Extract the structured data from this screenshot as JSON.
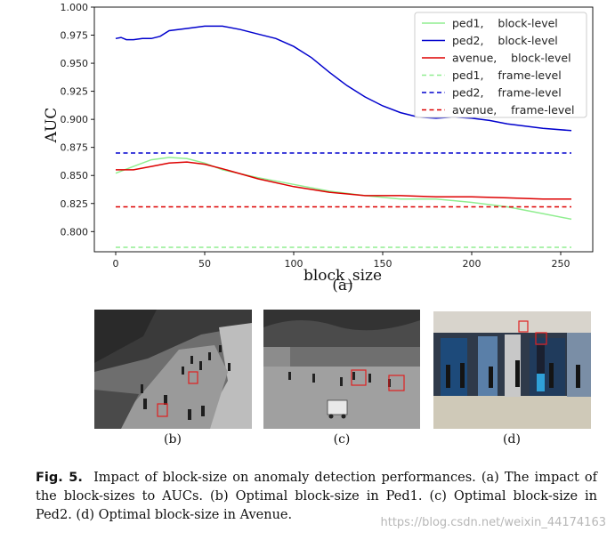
{
  "chart_data": {
    "type": "line",
    "title": "",
    "xlabel": "block_size",
    "ylabel": "AUC",
    "sublabel": "(a)",
    "xlim": [
      -12,
      268
    ],
    "ylim": [
      0.782,
      1.0
    ],
    "xticks": [
      0,
      50,
      100,
      150,
      200,
      250
    ],
    "yticks": [
      0.8,
      0.825,
      0.85,
      0.875,
      0.9,
      0.925,
      0.95,
      0.975,
      1.0
    ],
    "ytick_labels": [
      "0.800",
      "0.825",
      "0.850",
      "0.875",
      "0.900",
      "0.925",
      "0.950",
      "0.975",
      "1.000"
    ],
    "grid": false,
    "legend_position": "top-right",
    "series": [
      {
        "name": "ped1,    block-level",
        "color": "#90ee90",
        "style": "solid",
        "x": [
          0,
          10,
          20,
          30,
          40,
          50,
          60,
          80,
          100,
          120,
          140,
          160,
          180,
          200,
          220,
          240,
          256
        ],
        "y": [
          0.852,
          0.858,
          0.864,
          0.866,
          0.865,
          0.861,
          0.855,
          0.848,
          0.842,
          0.836,
          0.832,
          0.829,
          0.829,
          0.826,
          0.822,
          0.816,
          0.811
        ]
      },
      {
        "name": "ped2,    block-level",
        "color": "#0000cd",
        "style": "solid",
        "x": [
          0,
          3,
          6,
          10,
          15,
          20,
          25,
          30,
          40,
          50,
          60,
          70,
          80,
          90,
          100,
          110,
          120,
          130,
          140,
          150,
          160,
          170,
          180,
          190,
          200,
          210,
          220,
          230,
          240,
          256
        ],
        "y": [
          0.972,
          0.973,
          0.971,
          0.971,
          0.972,
          0.972,
          0.974,
          0.979,
          0.981,
          0.983,
          0.983,
          0.98,
          0.976,
          0.972,
          0.965,
          0.955,
          0.942,
          0.93,
          0.92,
          0.912,
          0.906,
          0.902,
          0.901,
          0.902,
          0.901,
          0.899,
          0.896,
          0.894,
          0.892,
          0.89
        ]
      },
      {
        "name": "avenue,    block-level",
        "color": "#dd0000",
        "style": "solid",
        "x": [
          0,
          10,
          20,
          30,
          40,
          50,
          60,
          80,
          100,
          120,
          140,
          160,
          180,
          200,
          220,
          240,
          256
        ],
        "y": [
          0.855,
          0.855,
          0.858,
          0.861,
          0.862,
          0.86,
          0.856,
          0.847,
          0.84,
          0.835,
          0.832,
          0.832,
          0.831,
          0.831,
          0.83,
          0.829,
          0.829
        ]
      },
      {
        "name": "ped1,    frame-level",
        "color": "#90ee90",
        "style": "dashed",
        "x": [
          0,
          256
        ],
        "y": [
          0.786,
          0.786
        ]
      },
      {
        "name": "ped2,    frame-level",
        "color": "#0000cd",
        "style": "dashed",
        "x": [
          0,
          256
        ],
        "y": [
          0.87,
          0.87
        ]
      },
      {
        "name": "avenue,    frame-level",
        "color": "#dd0000",
        "style": "dashed",
        "x": [
          0,
          256
        ],
        "y": [
          0.822,
          0.822
        ]
      }
    ]
  },
  "panels": [
    {
      "label": "(b)",
      "icon": "grayscale-walkway-scene"
    },
    {
      "label": "(c)",
      "icon": "grayscale-plaza-scene"
    },
    {
      "label": "(d)",
      "icon": "color-station-scene"
    }
  ],
  "caption": {
    "fig_label": "Fig. 5.",
    "text": "Impact of block-size on anomaly detection performances. (a) The impact of the block-sizes to AUCs. (b) Optimal block-size in Ped1. (c) Optimal block-size in Ped2. (d) Optimal block-size in Avenue."
  },
  "watermark": "https://blog.csdn.net/weixin_44174163",
  "colors": {
    "ped1": "#90ee90",
    "ped2": "#0000cd",
    "avenue": "#dd0000",
    "box": "#e02020"
  }
}
